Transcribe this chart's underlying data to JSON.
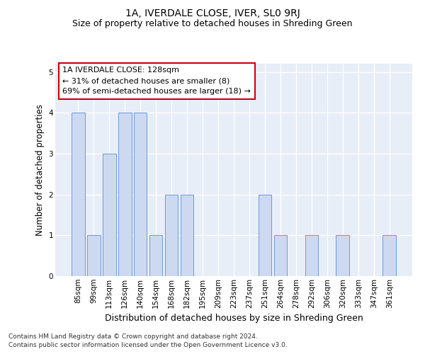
{
  "title": "1A, IVERDALE CLOSE, IVER, SL0 9RJ",
  "subtitle": "Size of property relative to detached houses in Shreding Green",
  "xlabel": "Distribution of detached houses by size in Shreding Green",
  "ylabel": "Number of detached properties",
  "categories": [
    "85sqm",
    "99sqm",
    "113sqm",
    "126sqm",
    "140sqm",
    "154sqm",
    "168sqm",
    "182sqm",
    "195sqm",
    "209sqm",
    "223sqm",
    "237sqm",
    "251sqm",
    "264sqm",
    "278sqm",
    "292sqm",
    "306sqm",
    "320sqm",
    "333sqm",
    "347sqm",
    "361sqm"
  ],
  "values": [
    4,
    1,
    3,
    4,
    4,
    1,
    2,
    2,
    0,
    0,
    0,
    0,
    2,
    1,
    0,
    1,
    0,
    1,
    0,
    0,
    1
  ],
  "bar_color": "#ccd9f0",
  "bar_edge_color": "#5b8fd4",
  "annotation_line1": "1A IVERDALE CLOSE: 128sqm",
  "annotation_line2": "← 31% of detached houses are smaller (8)",
  "annotation_line3": "69% of semi-detached houses are larger (18) →",
  "annotation_box_facecolor": "#ffffff",
  "annotation_box_edgecolor": "#cc0000",
  "footnote1": "Contains HM Land Registry data © Crown copyright and database right 2024.",
  "footnote2": "Contains public sector information licensed under the Open Government Licence v3.0.",
  "ylim": [
    0,
    5.2
  ],
  "yticks": [
    0,
    1,
    2,
    3,
    4,
    5
  ],
  "plot_bg": "#e8eef8",
  "title_fontsize": 10,
  "subtitle_fontsize": 9,
  "xlabel_fontsize": 9,
  "ylabel_fontsize": 8.5,
  "tick_fontsize": 7.5,
  "annotation_fontsize": 8,
  "footnote_fontsize": 6.5
}
